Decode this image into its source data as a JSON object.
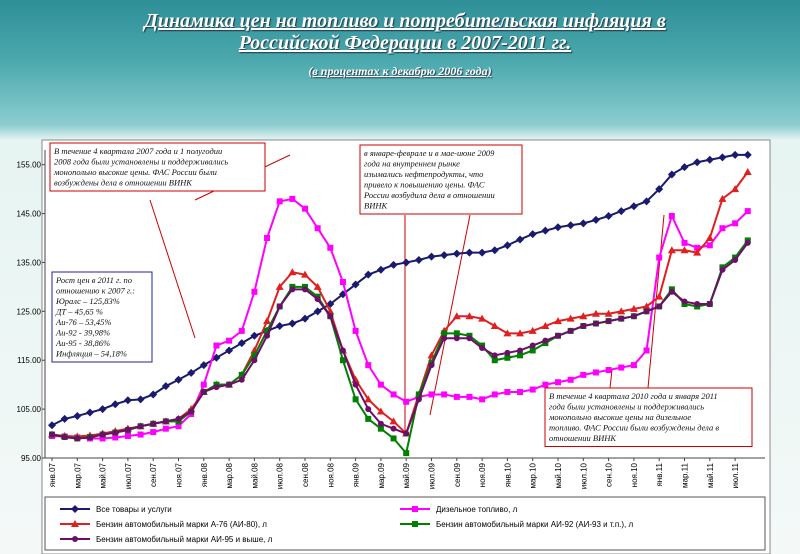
{
  "chart_data": {
    "type": "line",
    "title": "Динамика цен на топливо и потребительская инфляция в Российской Федерации в 2007-2011 гг.",
    "subtitle": "(в процентах к декабрю 2006 года)",
    "categories": [
      "янв.07",
      null,
      "мар.07",
      null,
      "май.07",
      null,
      "июл.07",
      null,
      "сен.07",
      null,
      "ноя.07",
      null,
      "янв.08",
      null,
      "мар.08",
      null,
      "май.08",
      null,
      "июл.08",
      null,
      "сен.08",
      null,
      "ноя.08",
      null,
      "янв.09",
      null,
      "мар.09",
      null,
      "май.09",
      null,
      "июл.09",
      null,
      "сен.09",
      null,
      "ноя.09",
      null,
      "янв.10",
      null,
      "мар.10",
      null,
      "май.10",
      null,
      "июл.10",
      null,
      "сен.10",
      null,
      "ноя.10",
      null,
      "янв.11",
      null,
      "мар.11",
      null,
      "май.11",
      null,
      "июл.11",
      null
    ],
    "ylim": [
      95,
      158
    ],
    "yticks": [
      {
        "value": 95,
        "label": "95.00"
      },
      {
        "value": 105,
        "label": "105.00"
      },
      {
        "value": 115,
        "label": "115.00"
      },
      {
        "value": 125,
        "label": "125.00"
      },
      {
        "value": 135,
        "label": "135.00"
      },
      {
        "value": 145,
        "label": "145.00"
      },
      {
        "value": 155,
        "label": "155.00"
      }
    ],
    "series": [
      {
        "name": "Все товары и услуги",
        "color": "#1a1a6e",
        "marker": "diamond",
        "values": [
          101.7,
          103,
          103.6,
          104.3,
          105,
          106,
          106.8,
          107,
          108,
          109.7,
          111,
          112.4,
          114,
          115.5,
          117,
          118.5,
          120,
          121,
          122,
          122.5,
          123.5,
          125,
          126.5,
          128.5,
          130.5,
          132.5,
          133.5,
          134.5,
          135,
          135.5,
          136.2,
          136.5,
          136.8,
          137,
          137,
          137.5,
          138.5,
          139.7,
          140.8,
          141.5,
          142.2,
          142.6,
          143,
          143.7,
          144.5,
          145.5,
          146.5,
          147.5,
          150,
          153,
          154.5,
          155.5,
          156,
          156.5,
          157,
          157
        ]
      },
      {
        "name": "Дизельное топливо, л",
        "color": "#ff00ff",
        "marker": "square",
        "values": [
          99.5,
          99.4,
          99.2,
          99,
          99,
          99.2,
          99.5,
          99.8,
          100.3,
          101,
          101.5,
          104,
          110,
          118,
          119,
          121,
          129,
          140,
          147.5,
          148,
          146,
          142,
          138,
          131,
          121,
          114,
          110,
          108,
          106.5,
          107.5,
          108,
          108,
          107.5,
          107.5,
          107,
          108,
          108.5,
          108.5,
          109,
          110,
          110.5,
          111,
          112,
          112.5,
          113,
          113.5,
          114,
          117,
          136,
          144.5,
          139,
          138,
          138.5,
          142,
          143,
          145.5
        ]
      },
      {
        "name": "Бензин автомобильный марки А-76 (АИ-80), л",
        "color": "#e02020",
        "marker": "triangle",
        "values": [
          99.8,
          99.5,
          99.4,
          99.6,
          100,
          100.5,
          101,
          101.5,
          102,
          102.5,
          103,
          105,
          108.5,
          110,
          110,
          112,
          117,
          123,
          130,
          133,
          132.5,
          130,
          125,
          117,
          111,
          107,
          104.5,
          102.5,
          100,
          108,
          116,
          121,
          124,
          124,
          123.5,
          122,
          120.5,
          120.5,
          121,
          122,
          123,
          123.5,
          124,
          124.5,
          124.5,
          125,
          125.5,
          126,
          128,
          137.5,
          137.5,
          137,
          140,
          148,
          150,
          153.5
        ]
      },
      {
        "name": "Бензин автомобильный марки АИ-92 (АИ-93 и т.п.), л",
        "color": "#008000",
        "marker": "square",
        "values": [
          99.8,
          99.3,
          99,
          99.3,
          99.8,
          100.2,
          100.7,
          101.5,
          102,
          102.5,
          102.5,
          104.5,
          108.5,
          110,
          110,
          112,
          116,
          121,
          126,
          130,
          130,
          128,
          124,
          115,
          107,
          103,
          101,
          99,
          96,
          108,
          114.5,
          120.5,
          120.5,
          120,
          118,
          115,
          115.5,
          116,
          117,
          118.5,
          120,
          121,
          122,
          122.5,
          123,
          123.5,
          124,
          125,
          126,
          129.5,
          126.5,
          126,
          126.5,
          134,
          136,
          139.5
        ]
      },
      {
        "name": "Бензин автомобильный марки АИ-95 и выше, л",
        "color": "#6b0f6b",
        "marker": "circle",
        "values": [
          99.8,
          99.3,
          99,
          99.2,
          99.8,
          100.2,
          100.8,
          101.5,
          102,
          102.5,
          103,
          104.5,
          108.5,
          109.5,
          110,
          111,
          115,
          120,
          126,
          129.5,
          129.5,
          127.5,
          124,
          117,
          110,
          105,
          102,
          101,
          100,
          107,
          114,
          119.5,
          119.5,
          119.5,
          117.5,
          116,
          116.5,
          117,
          118,
          119,
          120,
          121,
          122,
          122.5,
          123,
          123.5,
          124,
          125,
          126,
          129,
          127,
          126.5,
          126.5,
          133.5,
          135.5,
          139
        ]
      }
    ],
    "annotations": [
      {
        "lines": [
          "В течение 4 квартала 2007 года и 1 полугодии",
          "2008 года были установлены и поддерживались",
          "монопольно высокие цены. ФАС России были",
          "возбуждены дела в отношении ВИНК"
        ]
      },
      {
        "lines": [
          "в январе-феврале и в мае-июне 2009",
          "года на внутреннем рынке",
          "изымались нефтепродукты, что",
          "привело к повышению цены. ФАС",
          "России возбудила дела в отношении",
          "ВИНК"
        ]
      },
      {
        "lines": [
          "Рост цен в 2011 г. по",
          "отношению к 2007 г.:",
          "Юралс – 125,83%",
          "ДТ – 45,65 %",
          "Аи-76 – 53,45%",
          "Аи-92 - 39,98%",
          "Аи-95 - 38,86%",
          "Инфляция – 54,18%"
        ]
      },
      {
        "lines": [
          "В течение 4 квартала 2010 года и января 2011",
          "года были установлены и поддерживались",
          "монопольно высокие цены на дизельное",
          "топливо. ФАС России были возбуждены дела в",
          "отношении ВИНК"
        ]
      }
    ]
  }
}
